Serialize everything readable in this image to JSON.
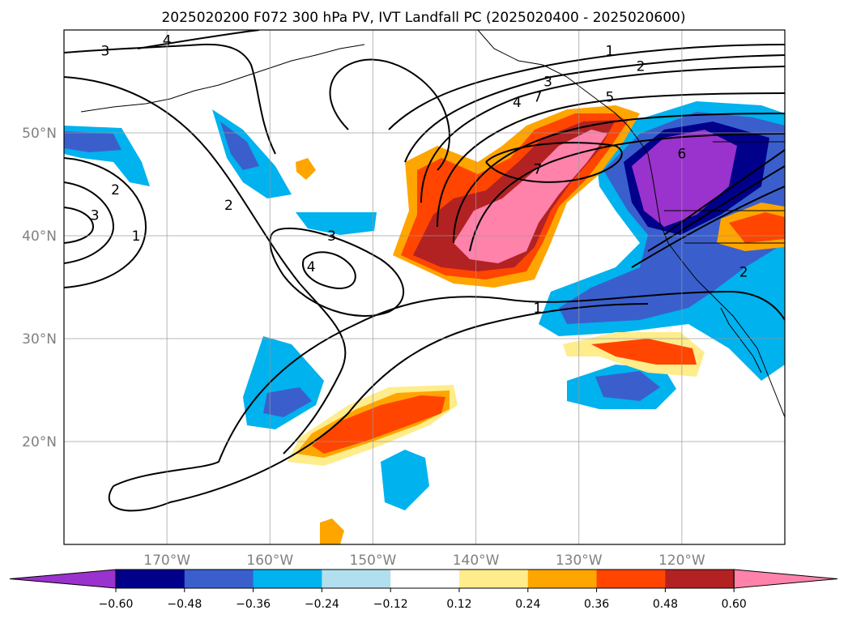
{
  "chart_data": {
    "type": "contour-map",
    "title": "2025020200 F072 300 hPa PV, IVT Landfall PC (2025020400 - 2025020600)",
    "x_axis": {
      "ticks": [
        {
          "value": -170,
          "label": "170°W"
        },
        {
          "value": -160,
          "label": "160°W"
        },
        {
          "value": -150,
          "label": "150°W"
        },
        {
          "value": -140,
          "label": "140°W"
        },
        {
          "value": -130,
          "label": "130°W"
        },
        {
          "value": -120,
          "label": "120°W"
        }
      ],
      "range": [
        -180,
        -110
      ]
    },
    "y_axis": {
      "ticks": [
        {
          "value": 20,
          "label": "20°N"
        },
        {
          "value": 30,
          "label": "30°N"
        },
        {
          "value": 40,
          "label": "40°N"
        },
        {
          "value": 50,
          "label": "50°N"
        }
      ],
      "range": [
        10,
        60
      ]
    },
    "grid": true,
    "colorbar": {
      "ticks": [
        "−0.60",
        "−0.48",
        "−0.36",
        "−0.24",
        "−0.12",
        "0.12",
        "0.24",
        "0.36",
        "0.48",
        "0.60"
      ],
      "levels": [
        -0.6,
        -0.48,
        -0.36,
        -0.24,
        -0.12,
        0.12,
        0.24,
        0.36,
        0.48,
        0.6
      ],
      "colors": [
        "#9a32cd",
        "#00008b",
        "#3a5fcd",
        "#00b2ee",
        "#b2dfee",
        "#ffffff",
        "#ffec8b",
        "#ffa500",
        "#ff4500",
        "#b22222",
        "#ff82ab"
      ],
      "extend": "both"
    },
    "contour_labels": [
      "1",
      "2",
      "3",
      "4",
      "5",
      "6",
      "7"
    ],
    "pv_labels_on_map": [
      {
        "label": "4",
        "lon": -170,
        "lat": 59
      },
      {
        "label": "3",
        "lon": -176,
        "lat": 58
      },
      {
        "label": "1",
        "lon": -127,
        "lat": 58
      },
      {
        "label": "2",
        "lon": -124,
        "lat": 56.5
      },
      {
        "label": "3",
        "lon": -133,
        "lat": 55
      },
      {
        "label": "5",
        "lon": -127,
        "lat": 53.5
      },
      {
        "label": "7",
        "lon": -134,
        "lat": 53.5
      },
      {
        "label": "4",
        "lon": -136,
        "lat": 53
      },
      {
        "label": "6",
        "lon": -120,
        "lat": 48
      },
      {
        "label": "7",
        "lon": -134,
        "lat": 46.5
      },
      {
        "label": "2",
        "lon": -175,
        "lat": 44.5
      },
      {
        "label": "3",
        "lon": -177,
        "lat": 42
      },
      {
        "label": "1",
        "lon": -173,
        "lat": 40
      },
      {
        "label": "2",
        "lon": -164,
        "lat": 43
      },
      {
        "label": "3",
        "lon": -154,
        "lat": 40
      },
      {
        "label": "4",
        "lon": -156,
        "lat": 37
      },
      {
        "label": "1",
        "lon": -134,
        "lat": 33
      },
      {
        "label": "2",
        "lon": -114,
        "lat": 36.5
      }
    ]
  }
}
